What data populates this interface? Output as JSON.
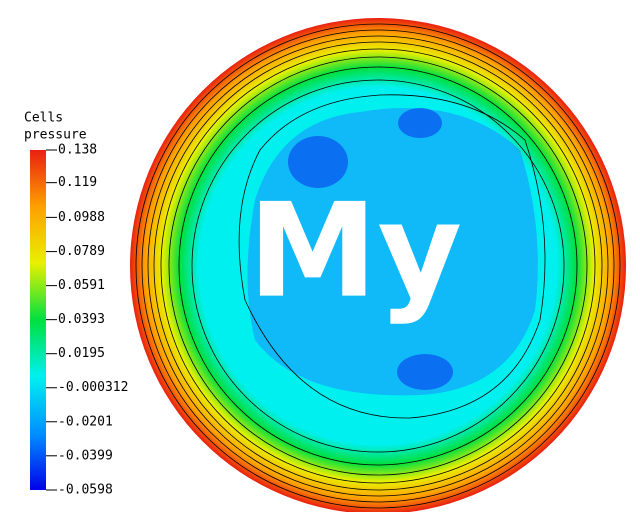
{
  "chart_data": {
    "type": "contour",
    "title_lines": [
      "Cells",
      "pressure"
    ],
    "annotation": "My",
    "zlim": [
      -0.0598,
      0.138
    ],
    "zticks": [
      0.138,
      0.119,
      0.0988,
      0.0789,
      0.0591,
      0.0393,
      0.0195,
      -0.000312,
      -0.0201,
      -0.0399,
      -0.0598
    ],
    "colorscale": [
      "#0000e8",
      "#0090ff",
      "#00f0f0",
      "#00e040",
      "#e8f000",
      "#ffa000",
      "#e82010"
    ]
  }
}
